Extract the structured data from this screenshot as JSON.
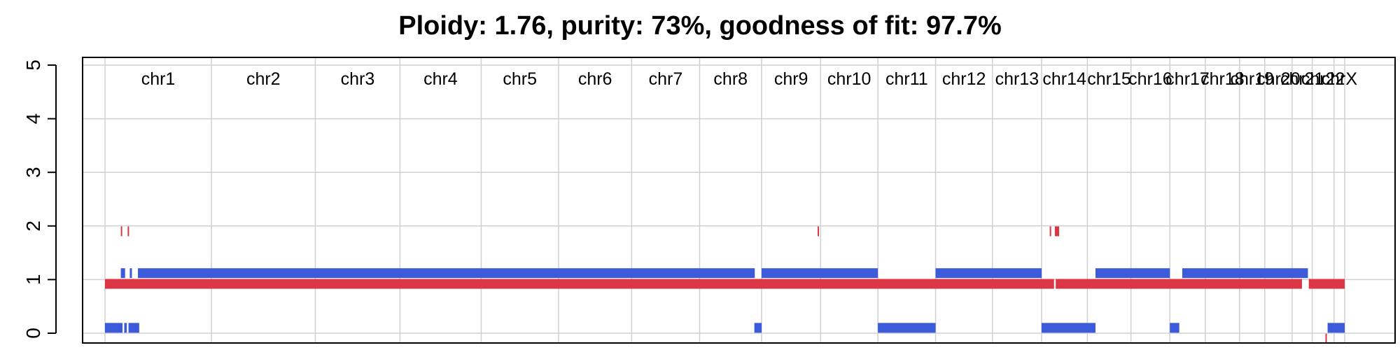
{
  "chart_data": {
    "type": "scatter",
    "title": "Ploidy: 1.76, purity: 73%, goodness of fit: 97.7%",
    "xlabel": "",
    "ylabel": "",
    "ylim": [
      0,
      5
    ],
    "y_ticks": [
      0,
      1,
      2,
      3,
      4,
      5
    ],
    "grid": true,
    "chromosomes": [
      {
        "name": "chr1",
        "start": 0,
        "end": 249
      },
      {
        "name": "chr2",
        "start": 249,
        "end": 492
      },
      {
        "name": "chr3",
        "start": 492,
        "end": 690
      },
      {
        "name": "chr4",
        "start": 690,
        "end": 880
      },
      {
        "name": "chr5",
        "start": 880,
        "end": 1061
      },
      {
        "name": "chr6",
        "start": 1061,
        "end": 1232
      },
      {
        "name": "chr7",
        "start": 1232,
        "end": 1391
      },
      {
        "name": "chr8",
        "start": 1391,
        "end": 1536
      },
      {
        "name": "chr9",
        "start": 1536,
        "end": 1674
      },
      {
        "name": "chr10",
        "start": 1674,
        "end": 1808
      },
      {
        "name": "chr11",
        "start": 1808,
        "end": 1943
      },
      {
        "name": "chr12",
        "start": 1943,
        "end": 2076
      },
      {
        "name": "chr13",
        "start": 2076,
        "end": 2191
      },
      {
        "name": "chr14",
        "start": 2191,
        "end": 2298
      },
      {
        "name": "chr15",
        "start": 2298,
        "end": 2400
      },
      {
        "name": "chr16",
        "start": 2400,
        "end": 2491
      },
      {
        "name": "chr17",
        "start": 2491,
        "end": 2574
      },
      {
        "name": "chr18",
        "start": 2574,
        "end": 2654
      },
      {
        "name": "chr19",
        "start": 2654,
        "end": 2713
      },
      {
        "name": "chr20",
        "start": 2713,
        "end": 2777
      },
      {
        "name": "chr21",
        "start": 2777,
        "end": 2824
      },
      {
        "name": "chr22",
        "start": 2824,
        "end": 2875
      },
      {
        "name": "chrX",
        "start": 2875,
        "end": 2900
      }
    ],
    "series": [
      {
        "color": "#dc3545",
        "segments": [
          [
            0,
            2220,
            0.92
          ],
          [
            2224,
            2800,
            0.92
          ],
          [
            2816,
            2900,
            0.92
          ],
          [
            37,
            39,
            1.9
          ],
          [
            53,
            55,
            1.9
          ],
          [
            1667,
            1669,
            1.9
          ],
          [
            2210,
            2213,
            1.9
          ],
          [
            2222,
            2232,
            1.9
          ],
          [
            2855,
            2857,
            -0.1
          ]
        ]
      },
      {
        "color": "#3b5bdb",
        "segments": [
          [
            37,
            47,
            1.12
          ],
          [
            58,
            63,
            1.12
          ],
          [
            77,
            1520,
            1.12
          ],
          [
            1536,
            1808,
            1.12
          ],
          [
            1943,
            2191,
            1.12
          ],
          [
            2317,
            2491,
            1.12
          ],
          [
            2520,
            2814,
            1.12
          ],
          [
            0,
            41,
            0.1
          ],
          [
            45,
            51,
            0.1
          ],
          [
            55,
            80,
            0.1
          ],
          [
            1519,
            1536,
            0.1
          ],
          [
            1808,
            1943,
            0.1
          ],
          [
            2191,
            2317,
            0.1
          ],
          [
            2491,
            2513,
            0.1
          ],
          [
            2860,
            2900,
            0.1
          ]
        ]
      }
    ]
  }
}
